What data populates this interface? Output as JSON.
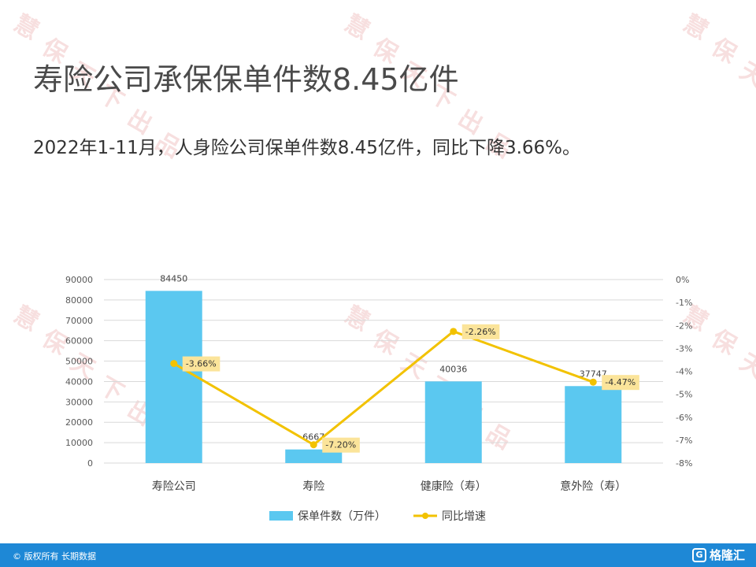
{
  "title": "寿险公司承保保单件数8.45亿件",
  "subtitle": "2022年1-11月，人身险公司保单件数8.45亿件，同比下降3.66%。",
  "watermark_chars": [
    "慧",
    "保",
    "天",
    "下",
    "出",
    "品"
  ],
  "footer": {
    "text": "© 版权所有 长期数据",
    "brand": "格隆汇",
    "brand_logo": "G"
  },
  "colors": {
    "bar": "#5bc8f0",
    "line": "#f2c200",
    "label_bg": "#fbe49a",
    "footer": "#1e88d6"
  },
  "chart_data": {
    "type": "bar",
    "categories": [
      "寿险公司",
      "寿险",
      "健康险（寿）",
      "意外险（寿）"
    ],
    "series": [
      {
        "name": "保单件数（万件）",
        "type": "bar",
        "axis": "left",
        "values": [
          84450,
          6667,
          40036,
          37747
        ],
        "labels": [
          "84450",
          "6667",
          "40036",
          "37747"
        ]
      },
      {
        "name": "同比增速",
        "type": "line",
        "axis": "right",
        "values": [
          -3.66,
          -7.2,
          -2.26,
          -4.47
        ],
        "labels": [
          "-3.66%",
          "-7.20%",
          "-2.26%",
          "-4.47%"
        ]
      }
    ],
    "left_axis": {
      "min": 0,
      "max": 90000,
      "step": 10000,
      "ticks": [
        "0",
        "10000",
        "20000",
        "30000",
        "40000",
        "50000",
        "60000",
        "70000",
        "80000",
        "90000"
      ]
    },
    "right_axis": {
      "min": -8,
      "max": 0,
      "step": 1,
      "ticks": [
        "-8%",
        "-7%",
        "-6%",
        "-5%",
        "-4%",
        "-3%",
        "-2%",
        "-1%",
        "0%"
      ]
    },
    "grid": true,
    "legend_position": "bottom"
  }
}
